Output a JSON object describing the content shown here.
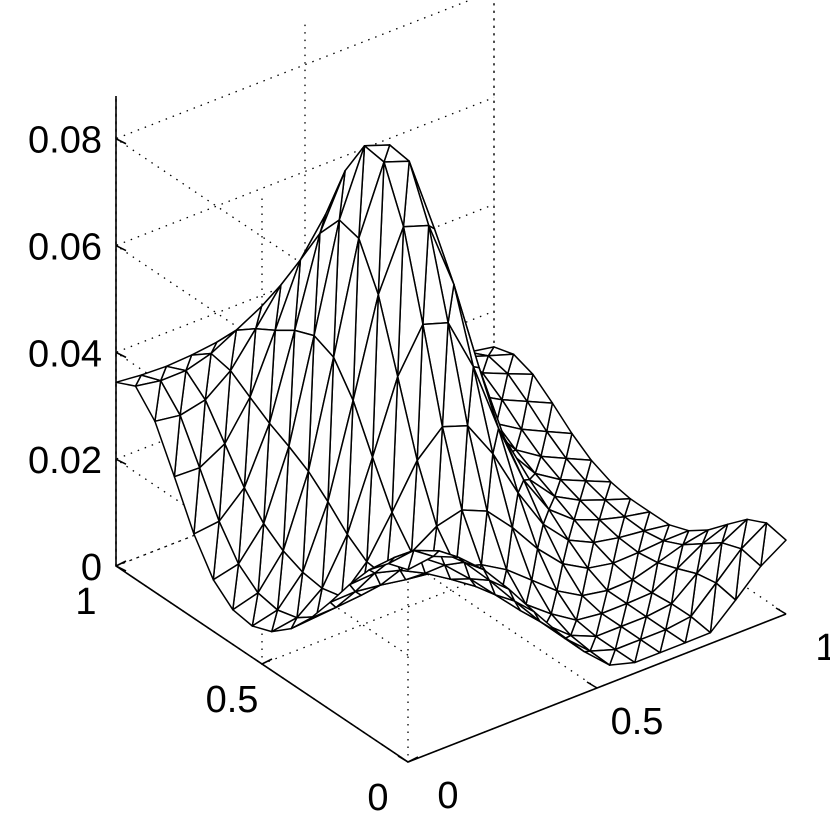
{
  "chart_data": {
    "type": "surface-mesh",
    "title": "",
    "xlabel": "",
    "ylabel": "",
    "zlabel": "",
    "xlim": [
      0,
      1
    ],
    "ylim": [
      0,
      1
    ],
    "zlim": [
      0,
      0.088
    ],
    "grid": true,
    "mesh_resolution": 15,
    "x_ticks": [
      {
        "value": 0,
        "label": "0"
      },
      {
        "value": 0.5,
        "label": "0.5"
      },
      {
        "value": 1,
        "label": "1"
      }
    ],
    "y_ticks": [
      {
        "value": 0,
        "label": "0"
      },
      {
        "value": 0.5,
        "label": "0.5"
      },
      {
        "value": 1,
        "label": "1"
      }
    ],
    "z_ticks": [
      {
        "value": 0,
        "label": "0"
      },
      {
        "value": 0.02,
        "label": "0.02"
      },
      {
        "value": 0.04,
        "label": "0.04"
      },
      {
        "value": 0.06,
        "label": "0.06"
      },
      {
        "value": 0.08,
        "label": "0.08"
      }
    ],
    "surface_points": [
      {
        "x": 0.4,
        "y": 0.6,
        "z": 0.085
      },
      {
        "x": 1.0,
        "y": 0.0,
        "z": 0.015
      },
      {
        "x": 0.0,
        "y": 1.0,
        "z": 0.042
      },
      {
        "x": 0.0,
        "y": 0.0,
        "z": 0.04
      },
      {
        "x": 1.0,
        "y": 1.0,
        "z": 0.02
      }
    ]
  }
}
